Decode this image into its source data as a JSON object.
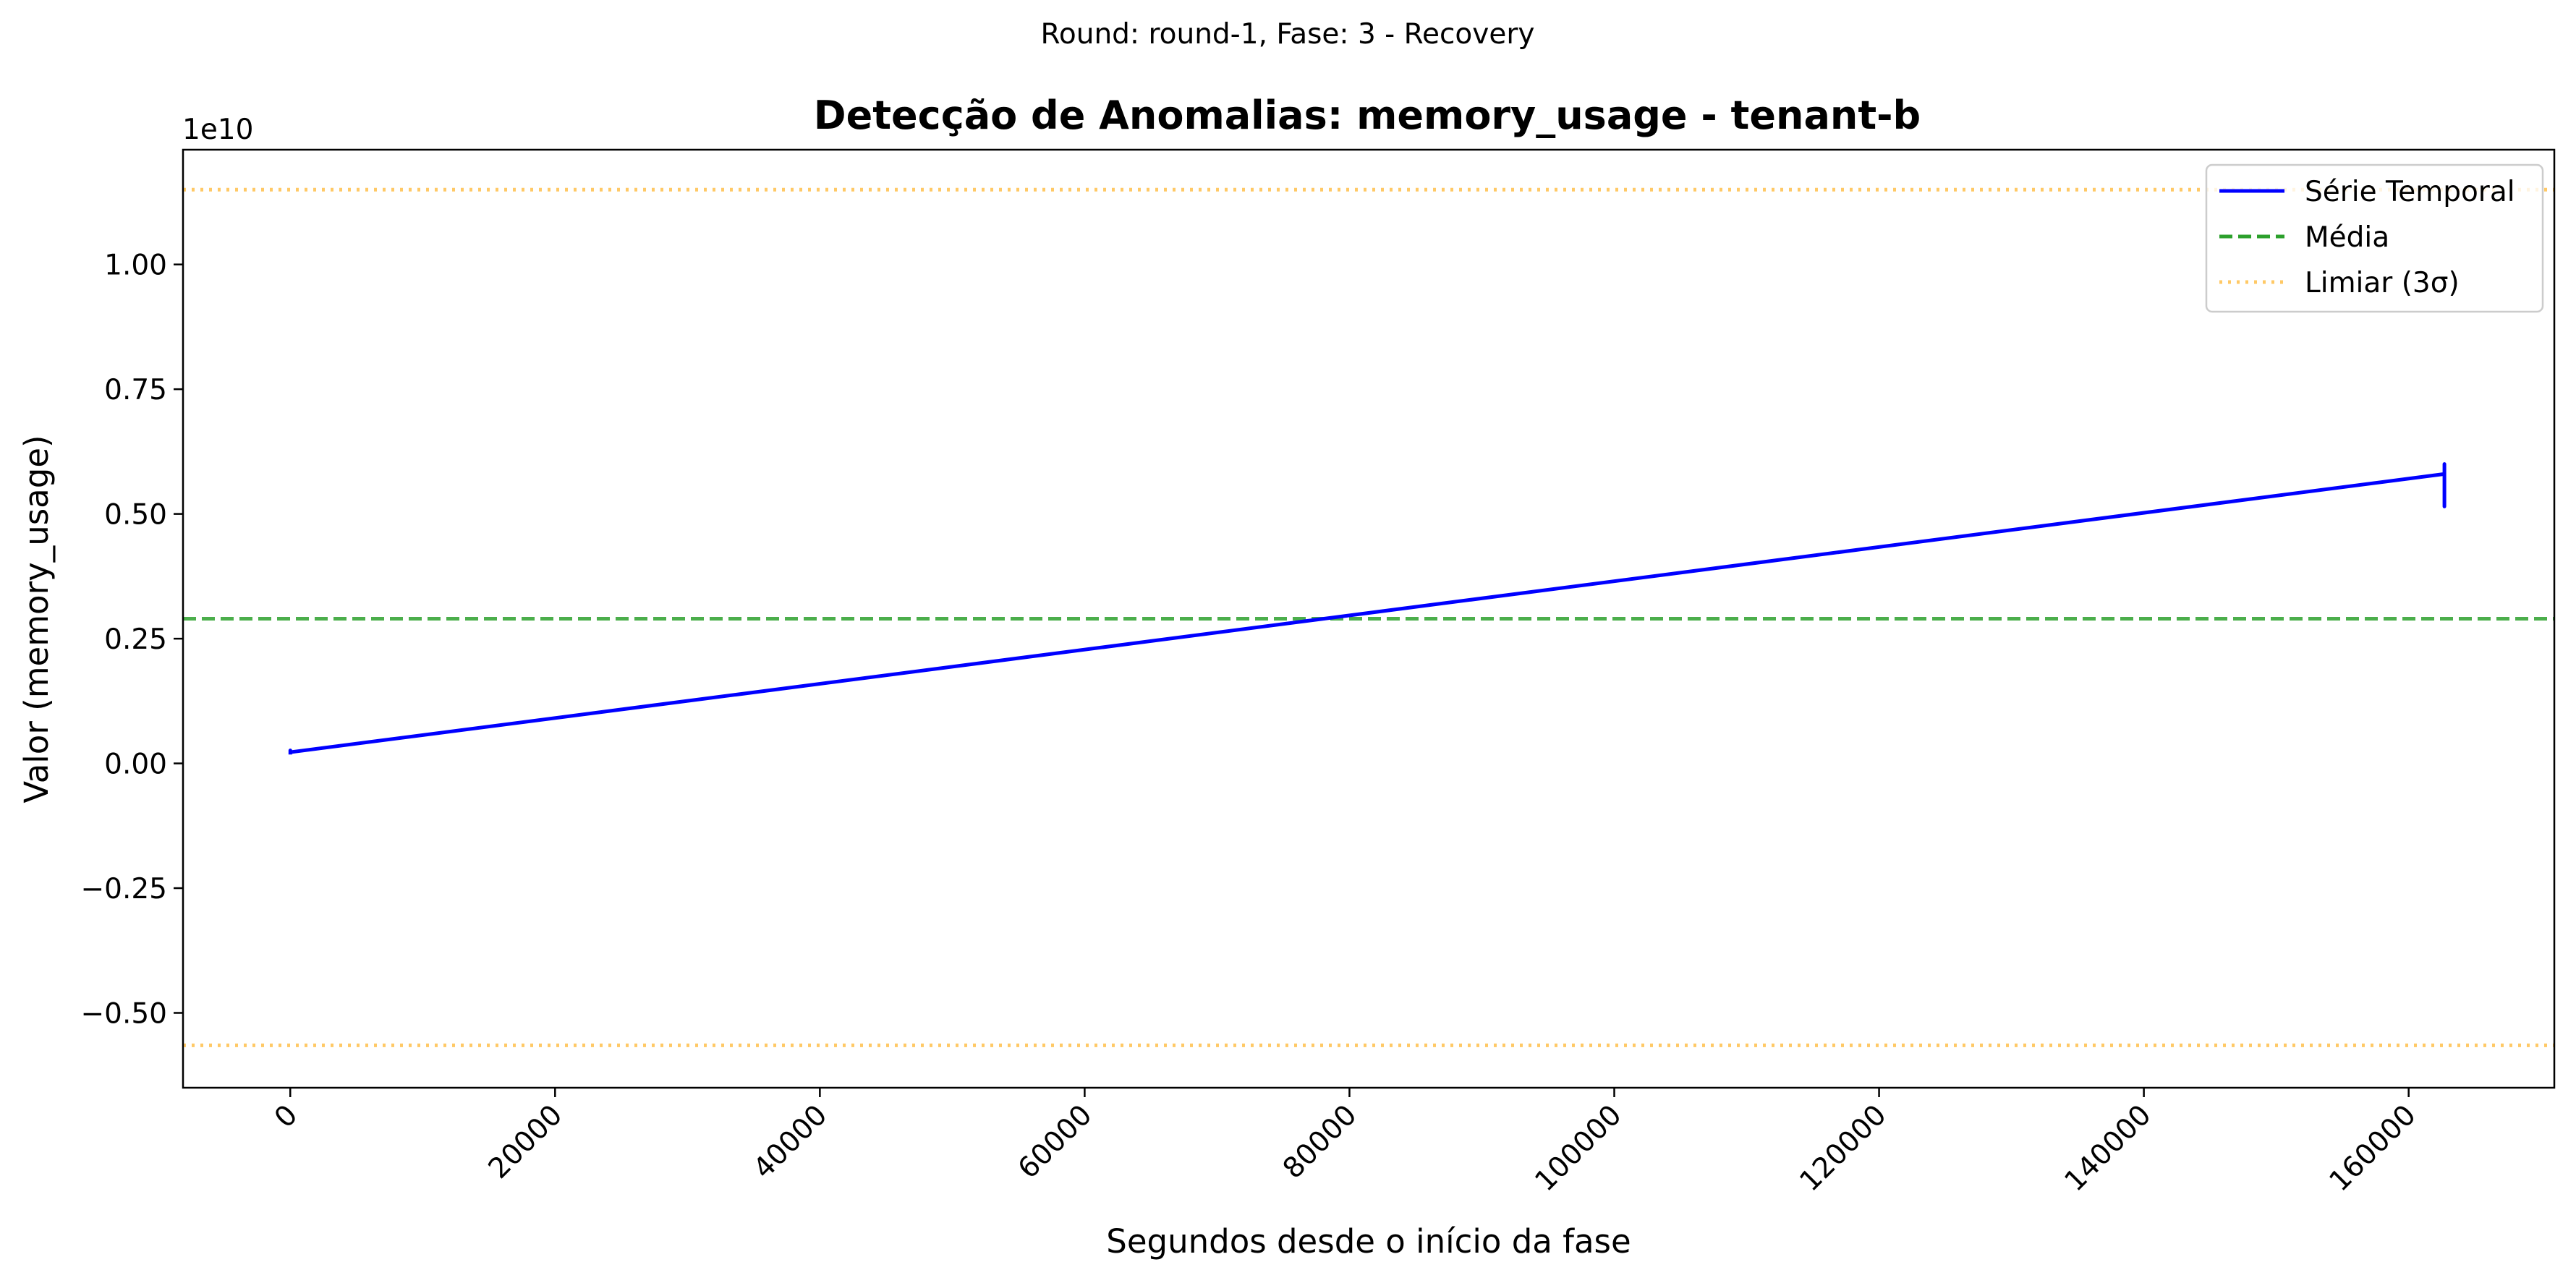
{
  "suptitle": "Round: round-1, Fase: 3 - Recovery",
  "chart_data": {
    "type": "line",
    "title": "Detecção de Anomalias: memory_usage - tenant-b",
    "xlabel": "Segundos desde o início da fase",
    "ylabel": "Valor (memory_usage)",
    "y_offset_text": "1e10",
    "xlim": [
      -8100,
      171000
    ],
    "ylim": [
      -0.65,
      1.23
    ],
    "y_scale_note": "y values shown in units of 1e10",
    "x_ticks": [
      0,
      20000,
      40000,
      60000,
      80000,
      100000,
      120000,
      140000,
      160000
    ],
    "x_tick_labels": [
      "0",
      "20000",
      "40000",
      "60000",
      "80000",
      "100000",
      "120000",
      "140000",
      "160000"
    ],
    "y_ticks": [
      -0.5,
      -0.25,
      0.0,
      0.25,
      0.5,
      0.75,
      1.0
    ],
    "y_tick_labels": [
      "−0.50",
      "−0.25",
      "0.00",
      "0.25",
      "0.50",
      "0.75",
      "1.00"
    ],
    "grid": false,
    "legend_position": "top-right",
    "series": [
      {
        "name": "Série Temporal",
        "color": "#0000ff",
        "style": "solid",
        "x": [
          0,
          0,
          10,
          160,
          162700,
          162700,
          162700,
          162700
        ],
        "y": [
          0.018,
          0.026,
          0.022,
          0.023,
          0.58,
          0.6,
          0.515,
          0.58
        ]
      }
    ],
    "reference_lines": [
      {
        "name": "Média",
        "color": "#2ca02c",
        "style": "dashed",
        "y": 0.29
      },
      {
        "name": "Limiar (3σ)",
        "color": "#ffa500",
        "style": "dotted",
        "y": 1.15
      },
      {
        "name": "",
        "color": "#ffa500",
        "style": "dotted",
        "y": -0.565
      }
    ]
  }
}
